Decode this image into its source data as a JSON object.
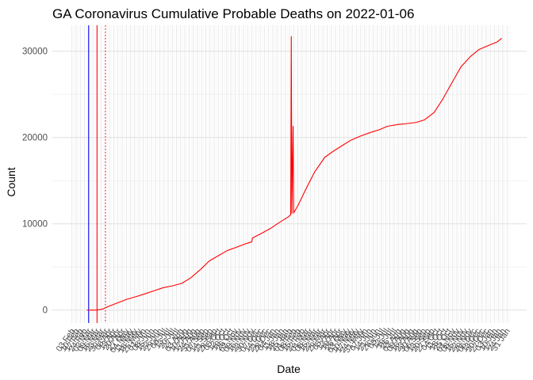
{
  "chart_data": {
    "type": "line",
    "title": "GA Coronavirus Cumulative Probable Deaths on 2022-01-06",
    "xlabel": "Date",
    "ylabel": "Count",
    "x_start": "2020-02-03",
    "x_end": "2022-01-31",
    "ylim": [
      -1500,
      33000
    ],
    "y_ticks": [
      0,
      10000,
      20000,
      30000
    ],
    "grid": true,
    "x_tick_labels": [
      "03 Feb",
      "10 Feb",
      "17 Feb",
      "24 Feb",
      "02 Mar",
      "09 Mar",
      "16 Mar",
      "23 Mar",
      "30 Mar",
      "06 Apr",
      "13 Apr",
      "20 Apr",
      "27 Apr",
      "04 May",
      "11 May",
      "18 May",
      "25 May",
      "01 Jun",
      "08 Jun",
      "15 Jun",
      "22 Jun",
      "29 Jun",
      "06 Jul",
      "13 Jul",
      "20 Jul",
      "27 Jul",
      "03 Aug",
      "10 Aug",
      "17 Aug",
      "24 Aug",
      "31 Aug",
      "07 Sep",
      "14 Sep",
      "21 Sep",
      "28 Sep",
      "05 Oct",
      "12 Oct",
      "19 Oct",
      "26 Oct",
      "02 Nov",
      "09 Nov",
      "16 Nov",
      "23 Nov",
      "30 Nov",
      "07 Dec",
      "14 Dec",
      "21 Dec",
      "28 Dec",
      "04 Jan",
      "11 Jan",
      "18 Jan",
      "25 Jan",
      "01 Feb",
      "08 Feb",
      "15 Feb",
      "22 Feb",
      "01 Mar",
      "08 Mar",
      "15 Mar",
      "22 Mar",
      "29 Mar",
      "05 Apr",
      "12 Apr",
      "19 Apr",
      "26 Apr",
      "03 May",
      "10 May",
      "17 May",
      "24 May",
      "31 May",
      "07 Jun",
      "14 Jun",
      "21 Jun",
      "28 Jun",
      "05 Jul",
      "12 Jul",
      "19 Jul",
      "26 Jul",
      "02 Aug",
      "09 Aug",
      "16 Aug",
      "23 Aug",
      "30 Aug",
      "06 Sep",
      "13 Sep",
      "20 Sep",
      "27 Sep",
      "04 Oct",
      "11 Oct",
      "18 Oct",
      "25 Oct",
      "01 Nov",
      "08 Nov",
      "15 Nov",
      "22 Nov",
      "29 Nov",
      "06 Dec",
      "13 Dec",
      "20 Dec",
      "27 Dec",
      "03 Jan",
      "10 Jan",
      "17 Jan",
      "24 Jan",
      "31 Jan"
    ],
    "series": [
      {
        "color": "#ff0000",
        "points": [
          [
            "2020-02-28",
            0
          ],
          [
            "2020-03-14",
            0
          ],
          [
            "2020-03-25",
            100
          ],
          [
            "2020-04-05",
            450
          ],
          [
            "2020-04-20",
            850
          ],
          [
            "2020-05-05",
            1250
          ],
          [
            "2020-05-20",
            1550
          ],
          [
            "2020-06-05",
            1900
          ],
          [
            "2020-06-20",
            2250
          ],
          [
            "2020-07-05",
            2600
          ],
          [
            "2020-07-20",
            2800
          ],
          [
            "2020-08-05",
            3100
          ],
          [
            "2020-08-20",
            3750
          ],
          [
            "2020-09-05",
            4700
          ],
          [
            "2020-09-20",
            5700
          ],
          [
            "2020-10-05",
            6300
          ],
          [
            "2020-10-20",
            6900
          ],
          [
            "2020-11-05",
            7300
          ],
          [
            "2020-11-20",
            7700
          ],
          [
            "2020-11-30",
            7900
          ],
          [
            "2020-12-01",
            8350
          ],
          [
            "2020-12-15",
            8850
          ],
          [
            "2020-12-31",
            9450
          ],
          [
            "2021-01-15",
            10150
          ],
          [
            "2021-01-30",
            10800
          ],
          [
            "2021-02-03",
            11050
          ],
          [
            "2021-02-04",
            31700
          ],
          [
            "2021-02-05",
            11200
          ],
          [
            "2021-02-07",
            21300
          ],
          [
            "2021-02-08",
            11250
          ],
          [
            "2021-02-15",
            12100
          ],
          [
            "2021-03-01",
            14100
          ],
          [
            "2021-03-15",
            16000
          ],
          [
            "2021-04-01",
            17700
          ],
          [
            "2021-04-15",
            18400
          ],
          [
            "2021-05-01",
            19100
          ],
          [
            "2021-05-15",
            19700
          ],
          [
            "2021-06-01",
            20200
          ],
          [
            "2021-06-15",
            20550
          ],
          [
            "2021-07-01",
            20900
          ],
          [
            "2021-07-15",
            21300
          ],
          [
            "2021-08-01",
            21500
          ],
          [
            "2021-08-15",
            21600
          ],
          [
            "2021-09-01",
            21750
          ],
          [
            "2021-09-15",
            22050
          ],
          [
            "2021-10-01",
            22900
          ],
          [
            "2021-10-15",
            24400
          ],
          [
            "2021-11-01",
            26500
          ],
          [
            "2021-11-15",
            28200
          ],
          [
            "2021-12-01",
            29400
          ],
          [
            "2021-12-15",
            30200
          ],
          [
            "2022-01-01",
            30700
          ],
          [
            "2022-01-15",
            31100
          ],
          [
            "2022-01-22",
            31500
          ]
        ]
      }
    ],
    "vlines": [
      {
        "date": "2020-03-02",
        "color": "#0000ff",
        "style": "solid"
      },
      {
        "date": "2020-03-16",
        "color": "#ff0000",
        "style": "solid"
      },
      {
        "date": "2020-03-30",
        "color": "#ff0000",
        "style": "dotted"
      }
    ]
  }
}
